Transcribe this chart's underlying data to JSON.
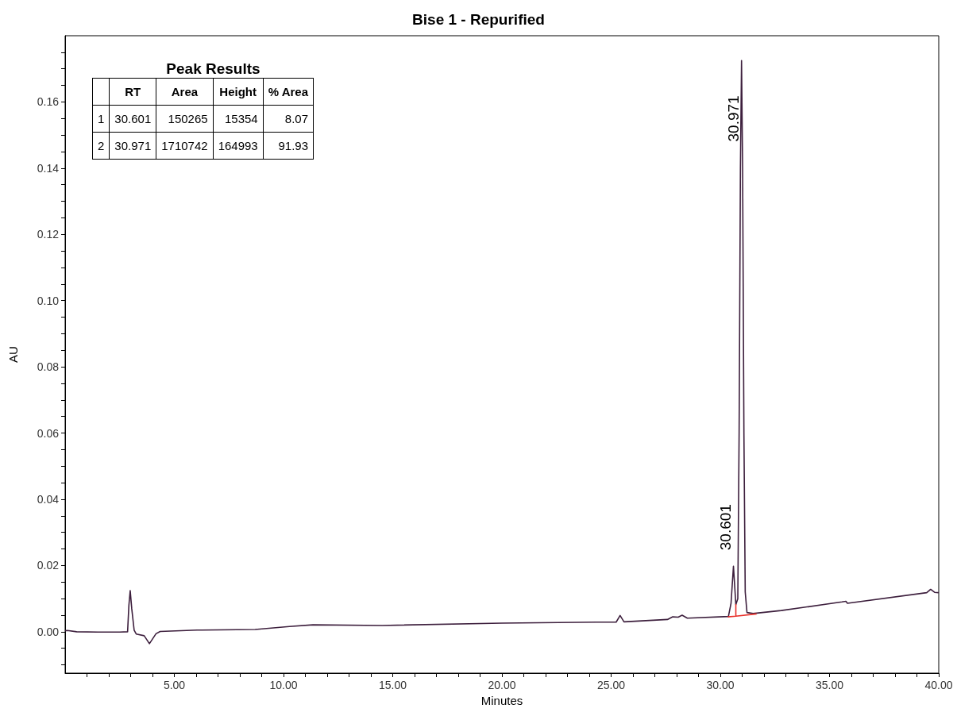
{
  "chart_data": {
    "type": "line",
    "title": "Bise 1 - Repurified",
    "xlabel": "Minutes",
    "ylabel": "AU",
    "xlim": [
      0,
      40
    ],
    "xticks": [
      {
        "value": 1,
        "label": null
      },
      {
        "value": 2,
        "label": null
      },
      {
        "value": 3,
        "label": null
      },
      {
        "value": 4,
        "label": null
      },
      {
        "value": 5,
        "label": "5.00"
      },
      {
        "value": 6,
        "label": null
      },
      {
        "value": 7,
        "label": null
      },
      {
        "value": 8,
        "label": null
      },
      {
        "value": 9,
        "label": null
      },
      {
        "value": 10,
        "label": "10.00"
      },
      {
        "value": 11,
        "label": null
      },
      {
        "value": 12,
        "label": null
      },
      {
        "value": 13,
        "label": null
      },
      {
        "value": 14,
        "label": null
      },
      {
        "value": 15,
        "label": "15.00"
      },
      {
        "value": 16,
        "label": null
      },
      {
        "value": 17,
        "label": null
      },
      {
        "value": 18,
        "label": null
      },
      {
        "value": 19,
        "label": null
      },
      {
        "value": 20,
        "label": "20.00"
      },
      {
        "value": 21,
        "label": null
      },
      {
        "value": 22,
        "label": null
      },
      {
        "value": 23,
        "label": null
      },
      {
        "value": 24,
        "label": null
      },
      {
        "value": 25,
        "label": "25.00"
      },
      {
        "value": 26,
        "label": null
      },
      {
        "value": 27,
        "label": null
      },
      {
        "value": 28,
        "label": null
      },
      {
        "value": 29,
        "label": null
      },
      {
        "value": 30,
        "label": "30.00"
      },
      {
        "value": 31,
        "label": null
      },
      {
        "value": 32,
        "label": null
      },
      {
        "value": 33,
        "label": null
      },
      {
        "value": 34,
        "label": null
      },
      {
        "value": 35,
        "label": "35.00"
      },
      {
        "value": 36,
        "label": null
      },
      {
        "value": 37,
        "label": null
      },
      {
        "value": 38,
        "label": null
      },
      {
        "value": 39,
        "label": null
      },
      {
        "value": 40,
        "label": "40.00"
      }
    ],
    "ylim": [
      -0.0125,
      0.18
    ],
    "yticks": [
      {
        "value": -0.01,
        "label": null
      },
      {
        "value": -0.005,
        "label": null
      },
      {
        "value": 0,
        "label": "0.00"
      },
      {
        "value": 0.005,
        "label": null
      },
      {
        "value": 0.01,
        "label": null
      },
      {
        "value": 0.015,
        "label": null
      },
      {
        "value": 0.02,
        "label": "0.02"
      },
      {
        "value": 0.025,
        "label": null
      },
      {
        "value": 0.03,
        "label": null
      },
      {
        "value": 0.035,
        "label": null
      },
      {
        "value": 0.04,
        "label": "0.04"
      },
      {
        "value": 0.045,
        "label": null
      },
      {
        "value": 0.05,
        "label": null
      },
      {
        "value": 0.055,
        "label": null
      },
      {
        "value": 0.06,
        "label": "0.06"
      },
      {
        "value": 0.065,
        "label": null
      },
      {
        "value": 0.07,
        "label": null
      },
      {
        "value": 0.075,
        "label": null
      },
      {
        "value": 0.08,
        "label": "0.08"
      },
      {
        "value": 0.085,
        "label": null
      },
      {
        "value": 0.09,
        "label": null
      },
      {
        "value": 0.095,
        "label": null
      },
      {
        "value": 0.1,
        "label": "0.10"
      },
      {
        "value": 0.105,
        "label": null
      },
      {
        "value": 0.11,
        "label": null
      },
      {
        "value": 0.115,
        "label": null
      },
      {
        "value": 0.12,
        "label": "0.12"
      },
      {
        "value": 0.125,
        "label": null
      },
      {
        "value": 0.13,
        "label": null
      },
      {
        "value": 0.135,
        "label": null
      },
      {
        "value": 0.14,
        "label": "0.14"
      },
      {
        "value": 0.145,
        "label": null
      },
      {
        "value": 0.15,
        "label": null
      },
      {
        "value": 0.155,
        "label": null
      },
      {
        "value": 0.16,
        "label": "0.16"
      },
      {
        "value": 0.165,
        "label": null
      },
      {
        "value": 0.17,
        "label": null
      },
      {
        "value": 0.175,
        "label": null
      }
    ],
    "grid": false,
    "series": [
      {
        "color": "#3d1f3d",
        "x": [
          0,
          0.1,
          0.53,
          1.5,
          2.5,
          2.86,
          2.92,
          2.98,
          3.05,
          3.16,
          3.26,
          3.62,
          3.86,
          4.16,
          4.35,
          6.04,
          8.7,
          10.27,
          11.35,
          14.51,
          20,
          24.31,
          25.23,
          25.41,
          25.59,
          27.58,
          27.82,
          28.07,
          28.25,
          28.49,
          30.37,
          30.49,
          30.601,
          30.71,
          30.8,
          30.86,
          30.92,
          30.971,
          31.02,
          31.08,
          31.14,
          31.22,
          31.5,
          32.79,
          35.57,
          35.75,
          35.82,
          39.45,
          39.63,
          39.81,
          40
        ],
        "values": [
          0.0003,
          0.0004,
          0,
          -0.0001,
          -0.0001,
          0,
          0.008,
          0.0124,
          0.007,
          0.0005,
          -0.0007,
          -0.0012,
          -0.0036,
          -0.0006,
          0.0001,
          0.0005,
          0.0007,
          0.0016,
          0.0021,
          0.0019,
          0.0026,
          0.0029,
          0.0029,
          0.0049,
          0.003,
          0.0037,
          0.0045,
          0.0044,
          0.005,
          0.0041,
          0.0046,
          0.0086,
          0.0198,
          0.0082,
          0.01,
          0.06,
          0.14,
          0.1725,
          0.14,
          0.06,
          0.012,
          0.0058,
          0.0055,
          0.0064,
          0.009,
          0.0092,
          0.0086,
          0.0118,
          0.0128,
          0.0119,
          0.0118
        ]
      },
      {
        "color": "#e8302a",
        "x": [
          30.34,
          30.71,
          30.71,
          30.71,
          31.66
        ],
        "values": [
          0.0045,
          0.0047,
          0.0082,
          0.0047,
          0.0054
        ]
      }
    ],
    "annotations": [
      "Peak Results",
      "RT",
      "Area",
      "Height",
      "% Area",
      "1",
      "30.601",
      "150265",
      "15354",
      "8.07",
      "2",
      "30.971",
      "1710742",
      "164993",
      "91.93",
      {
        "text": "30.601",
        "x": 30.601,
        "y": 0.0246
      },
      {
        "text": "30.971",
        "x": 30.971,
        "y": 0.148
      }
    ]
  }
}
